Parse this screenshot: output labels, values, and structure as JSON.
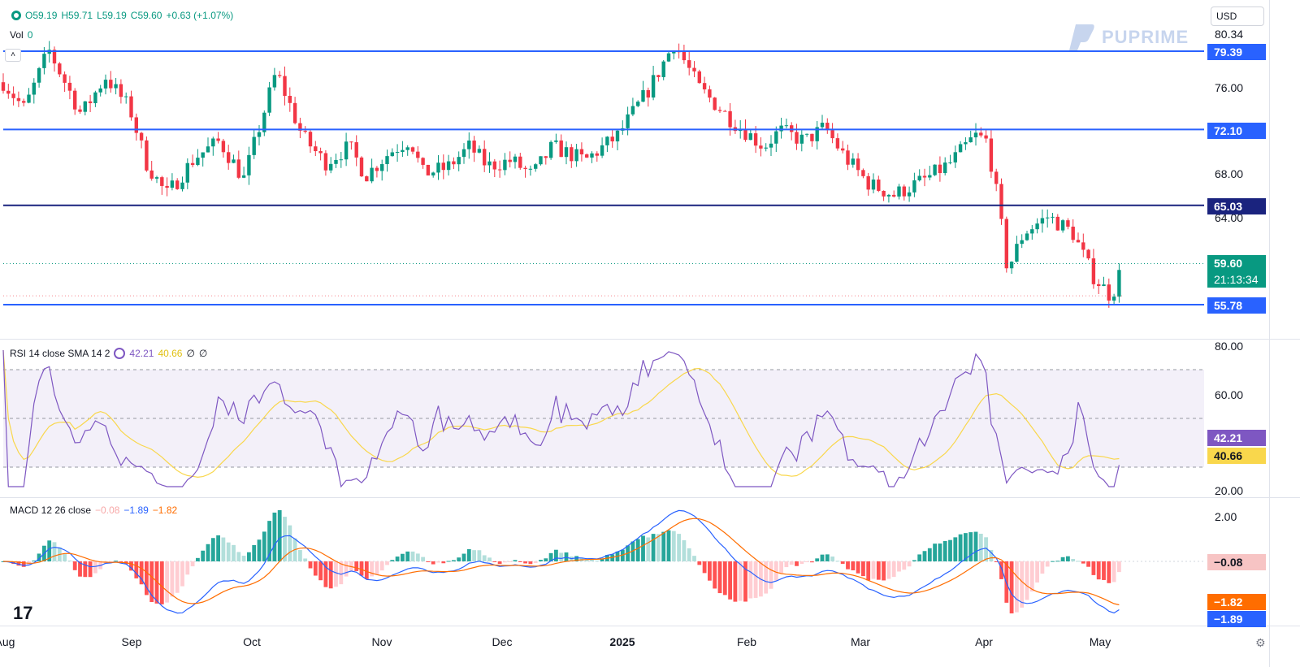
{
  "header": {
    "ohlc": {
      "o": "O59.19",
      "h": "H59.71",
      "l": "L59.19",
      "c": "C59.60",
      "chg": "+0.63 (+1.07%)"
    },
    "vol_label": "Vol",
    "vol_value": "0",
    "currency": "USD",
    "brand": "PUPRIME",
    "countdown": "21:13:34"
  },
  "colors": {
    "up": "#089981",
    "down": "#f23645",
    "level": "#2962ff",
    "level_dark": "#1a237e",
    "rsi": "#7e57c2",
    "rsi_sma": "#f9d74c",
    "macd": "#2962ff",
    "signal": "#ff6d00"
  },
  "chart_data": [
    {
      "type": "candlestick",
      "y_ticks": [
        80.34,
        76.0,
        72.0,
        68.0,
        64.0,
        60.0,
        56.0
      ],
      "y_tick_labels": [
        "80.34",
        "76.00",
        "",
        "68.00",
        "64.00",
        "",
        ""
      ],
      "levels": [
        {
          "value": 79.39,
          "label": "79.39"
        },
        {
          "value": 72.1,
          "label": "72.10"
        },
        {
          "value": 65.03,
          "label": "65.03"
        },
        {
          "value": 55.78,
          "label": "55.78"
        }
      ],
      "last_price": {
        "value": 59.6,
        "label": "59.60"
      },
      "x_labels": [
        "Aug",
        "Sep",
        "Oct",
        "Nov",
        "Dec",
        "2025",
        "Feb",
        "Mar",
        "Apr",
        "May"
      ]
    },
    {
      "type": "line",
      "title": "RSI 14 close SMA 14 2",
      "rsi_value": "42.21",
      "sma_value": "40.66",
      "extra": [
        "∅",
        "∅"
      ],
      "y_ticks": [
        "80.00",
        "60.00",
        "20.00"
      ],
      "bands": [
        70,
        50,
        30
      ]
    },
    {
      "type": "line",
      "title": "MACD 12 26 close",
      "hist_value": "−0.08",
      "macd_value": "−1.89",
      "signal_value": "−1.82",
      "y_ticks": [
        "2.00"
      ]
    }
  ]
}
